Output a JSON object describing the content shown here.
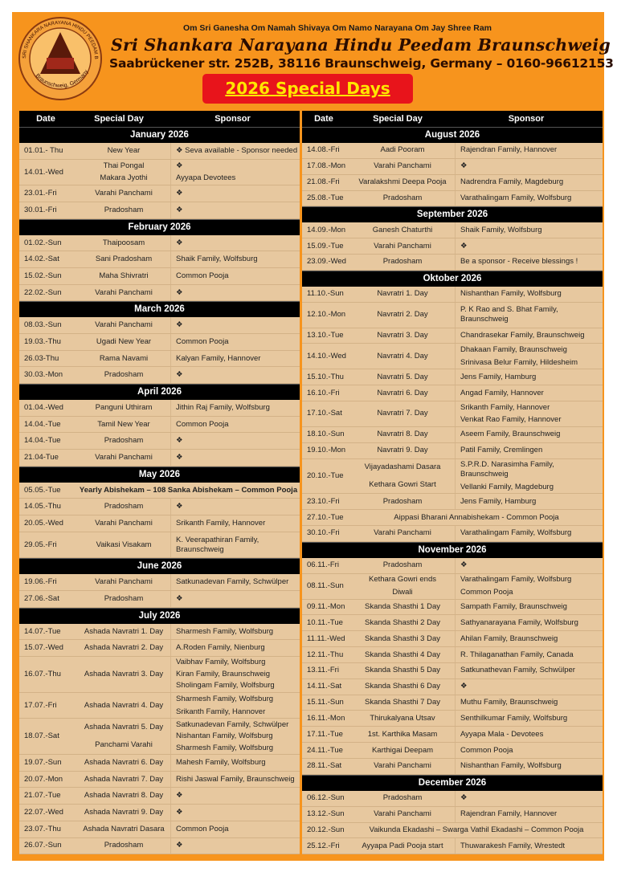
{
  "colors": {
    "panel": "#f7941d",
    "header_bg": "#000000",
    "cell_bg": "#e7c89f",
    "title_box": "#e8141b",
    "title_text": "#ffe600"
  },
  "logo": {
    "ring_text": "SRI SHANKARA NARAYANA HINDU PEEDAM BS/BG",
    "bottom_text": "Braunschweig, Germany"
  },
  "header": {
    "mantras": "Om Sri Ganesha  Om Namah Shivaya  Om Namo Narayana   Om Jay Shree Ram",
    "title": "Sri Shankara Narayana Hindu Peedam Braunschweig",
    "address": "Saabrückener str. 252B, 38116 Braunschweig, Germany – 0160-96612153",
    "special": "2026 Special Days"
  },
  "columns": {
    "date": "Date",
    "day": "Special Day",
    "sponsor": "Sponsor"
  },
  "left": [
    {
      "title": "January 2026",
      "rows": [
        {
          "date": "01.01.- Thu",
          "day": [
            "New Year"
          ],
          "sponsor": [
            "❖  Seva available - Sponsor needed"
          ]
        },
        {
          "date": "14.01.-Wed",
          "day": [
            "Thai Pongal",
            "Makara Jyothi"
          ],
          "sponsor": [
            "❖",
            "Ayyapa Devotees"
          ]
        },
        {
          "date": "23.01.-Fri",
          "day": [
            "Varahi Panchami"
          ],
          "sponsor": [
            "❖"
          ]
        },
        {
          "date": "30.01.-Fri",
          "day": [
            "Pradosham"
          ],
          "sponsor": [
            "❖"
          ]
        }
      ]
    },
    {
      "title": "February 2026",
      "rows": [
        {
          "date": "01.02.-Sun",
          "day": [
            "Thaipoosam"
          ],
          "sponsor": [
            "❖"
          ]
        },
        {
          "date": "14.02.-Sat",
          "day": [
            "Sani Pradosham"
          ],
          "sponsor": [
            "Shaik Family, Wolfsburg"
          ]
        },
        {
          "date": "15.02.-Sun",
          "day": [
            "Maha Shivratri"
          ],
          "sponsor": [
            "Common Pooja"
          ]
        },
        {
          "date": "22.02.-Sun",
          "day": [
            "Varahi Panchami"
          ],
          "sponsor": [
            "❖"
          ]
        }
      ]
    },
    {
      "title": "March 2026",
      "rows": [
        {
          "date": "08.03.-Sun",
          "day": [
            "Varahi Panchami"
          ],
          "sponsor": [
            "❖"
          ]
        },
        {
          "date": "19.03.-Thu",
          "day": [
            "Ugadi New Year"
          ],
          "sponsor": [
            "Common Pooja"
          ]
        },
        {
          "date": "26.03-Thu",
          "day": [
            "Rama Navami"
          ],
          "sponsor": [
            "Kalyan Family, Hannover"
          ]
        },
        {
          "date": "30.03.-Mon",
          "day": [
            "Pradosham"
          ],
          "sponsor": [
            "❖"
          ]
        }
      ]
    },
    {
      "title": "April 2026",
      "rows": [
        {
          "date": "01.04.-Wed",
          "day": [
            "Panguni Uthiram"
          ],
          "sponsor": [
            "Jithin Raj Family, Wolfsburg"
          ]
        },
        {
          "date": "14.04.-Tue",
          "day": [
            "Tamil New Year"
          ],
          "sponsor": [
            "Common Pooja"
          ]
        },
        {
          "date": "14.04.-Tue",
          "day": [
            "Pradosham"
          ],
          "sponsor": [
            "❖"
          ]
        },
        {
          "date": "21.04-Tue",
          "day": [
            "Varahi Panchami"
          ],
          "sponsor": [
            "❖"
          ]
        }
      ]
    },
    {
      "title": "May 2026",
      "rows": [
        {
          "date": "05.05.-Tue",
          "merged": "Yearly Abishekam – 108 Sanka Abishekam – Common Pooja",
          "bold": true
        },
        {
          "date": "14.05.-Thu",
          "day": [
            "Pradosham"
          ],
          "sponsor": [
            "❖"
          ]
        },
        {
          "date": "20.05.-Wed",
          "day": [
            "Varahi Panchami"
          ],
          "sponsor": [
            "Srikanth Family, Hannover"
          ]
        },
        {
          "date": "29.05.-Fri",
          "day": [
            "Vaikasi Visakam"
          ],
          "sponsor": [
            "K. Veerapathiran Family, Braunschweig"
          ]
        }
      ]
    },
    {
      "title": "June 2026",
      "rows": [
        {
          "date": "19.06.-Fri",
          "day": [
            "Varahi Panchami"
          ],
          "sponsor": [
            "Satkunadevan Family, Schwülper"
          ]
        },
        {
          "date": "27.06.-Sat",
          "day": [
            "Pradosham"
          ],
          "sponsor": [
            "❖"
          ]
        }
      ]
    },
    {
      "title": "July 2026",
      "rows": [
        {
          "date": "14.07.-Tue",
          "day": [
            "Ashada Navratri 1. Day"
          ],
          "sponsor": [
            "Sharmesh Family, Wolfsburg"
          ]
        },
        {
          "date": "15.07.-Wed",
          "day": [
            "Ashada Navratri 2. Day"
          ],
          "sponsor": [
            "A.Roden Family, Nienburg"
          ]
        },
        {
          "date": "16.07.-Thu",
          "day": [
            "Ashada Navratri 3. Day"
          ],
          "sponsor": [
            "Vaibhav Family, Wolfsburg",
            "Kiran Family, Braunschweig",
            "Sholingam Family, Wolfsburg"
          ]
        },
        {
          "date": "17.07.-Fri",
          "day": [
            "Ashada Navratri 4. Day"
          ],
          "sponsor": [
            "Sharmesh Family, Wolfsburg",
            "Srikanth Family, Hannover"
          ]
        },
        {
          "date": "18.07.-Sat",
          "day": [
            "Ashada Navratri 5. Day",
            "Panchami Varahi"
          ],
          "sponsor": [
            "Satkunadevan Family, Schwülper",
            "Nishantan Family, Wolfsburg",
            "Sharmesh Family, Wolfsburg"
          ]
        },
        {
          "date": "19.07.-Sun",
          "day": [
            "Ashada Navratri 6. Day"
          ],
          "sponsor": [
            "Mahesh Family, Wolfsburg"
          ]
        },
        {
          "date": "20.07.-Mon",
          "day": [
            "Ashada Navratri 7. Day"
          ],
          "sponsor": [
            "Rishi Jaswal Family, Braunschweig"
          ]
        },
        {
          "date": "21.07.-Tue",
          "day": [
            "Ashada Navratri 8. Day"
          ],
          "sponsor": [
            "❖"
          ]
        },
        {
          "date": "22.07.-Wed",
          "day": [
            "Ashada Navratri 9. Day"
          ],
          "sponsor": [
            "❖"
          ]
        },
        {
          "date": "23.07.-Thu",
          "day": [
            "Ashada Navratri Dasara"
          ],
          "sponsor": [
            "Common Pooja"
          ]
        },
        {
          "date": "26.07.-Sun",
          "day": [
            "Pradosham"
          ],
          "sponsor": [
            "❖"
          ]
        }
      ]
    }
  ],
  "right": [
    {
      "title": "August 2026",
      "rows": [
        {
          "date": "14.08.-Fri",
          "day": [
            "Aadi Pooram"
          ],
          "sponsor": [
            "Rajendran Family, Hannover"
          ]
        },
        {
          "date": "17.08.-Mon",
          "day": [
            "Varahi Panchami"
          ],
          "sponsor": [
            "❖"
          ]
        },
        {
          "date": "21.08.-Fri",
          "day": [
            "Varalakshmi Deepa Pooja"
          ],
          "sponsor": [
            "Nadrendra Family, Magdeburg"
          ]
        },
        {
          "date": "25.08.-Tue",
          "day": [
            "Pradosham"
          ],
          "sponsor": [
            "Varathalingam Family, Wolfsburg"
          ]
        }
      ]
    },
    {
      "title": "September 2026",
      "rows": [
        {
          "date": "14.09.-Mon",
          "day": [
            "Ganesh Chaturthi"
          ],
          "sponsor": [
            "Shaik Family, Wolfsburg"
          ]
        },
        {
          "date": "15.09.-Tue",
          "day": [
            "Varahi Panchami"
          ],
          "sponsor": [
            "❖"
          ]
        },
        {
          "date": "23.09.-Wed",
          "day": [
            "Pradosham"
          ],
          "sponsor": [
            "Be a sponsor -  Receive blessings !"
          ]
        }
      ]
    },
    {
      "title": "Oktober 2026",
      "rows": [
        {
          "date": "11.10.-Sun",
          "day": [
            "Navratri 1. Day"
          ],
          "sponsor": [
            "Nishanthan Family, Wolfsburg"
          ]
        },
        {
          "date": "12.10.-Mon",
          "day": [
            "Navratri 2. Day"
          ],
          "sponsor": [
            "P. K Rao and S. Bhat Family, Braunschweig"
          ]
        },
        {
          "date": "13.10.-Tue",
          "day": [
            "Navratri 3. Day"
          ],
          "sponsor": [
            "Chandrasekar Family, Braunschweig"
          ]
        },
        {
          "date": "14.10.-Wed",
          "day": [
            "Navratri 4. Day"
          ],
          "sponsor": [
            "Dhakaan Family, Braunschweig",
            "Srinivasa Belur Family, Hildesheim"
          ]
        },
        {
          "date": "15.10.-Thu",
          "day": [
            "Navratri 5. Day"
          ],
          "sponsor": [
            "Jens Family, Hamburg"
          ]
        },
        {
          "date": "16.10.-Fri",
          "day": [
            "Navratri 6. Day"
          ],
          "sponsor": [
            "Angad Family, Hannover"
          ]
        },
        {
          "date": "17.10.-Sat",
          "day": [
            "Navratri 7. Day"
          ],
          "sponsor": [
            "Srikanth Family, Hannover",
            "Venkat Rao Family, Hannover"
          ]
        },
        {
          "date": "18.10.-Sun",
          "day": [
            "Navratri 8. Day"
          ],
          "sponsor": [
            "Aseem Family, Braunschweig"
          ]
        },
        {
          "date": "19.10.-Mon",
          "day": [
            "Navratri 9. Day"
          ],
          "sponsor": [
            "Patil Family, Cremlingen"
          ]
        },
        {
          "date": "20.10.-Tue",
          "day": [
            "Vijayadashami Dasara",
            "Kethara Gowri Start"
          ],
          "sponsor": [
            "S.P.R.D. Narasimha Family, Braunschweig",
            "Vellanki Family, Magdeburg"
          ]
        },
        {
          "date": "23.10.-Fri",
          "day": [
            "Pradosham"
          ],
          "sponsor": [
            "Jens Family, Hamburg"
          ]
        },
        {
          "date": "27.10.-Tue",
          "merged": "Aippasi Bharani Annabishekam -  Common Pooja"
        },
        {
          "date": "30.10.-Fri",
          "day": [
            "Varahi Panchami"
          ],
          "sponsor": [
            "Varathalingam Family, Wolfsburg"
          ]
        }
      ]
    },
    {
      "title": "November 2026",
      "rows": [
        {
          "date": "06.11.-Fri",
          "day": [
            "Pradosham"
          ],
          "sponsor": [
            "❖"
          ]
        },
        {
          "date": "08.11.-Sun",
          "day": [
            "Kethara Gowri ends",
            "Diwali"
          ],
          "sponsor": [
            "Varathalingam Family, Wolfsburg",
            "Common Pooja"
          ]
        },
        {
          "date": "09.11.-Mon",
          "day": [
            "Skanda Shasthi 1 Day"
          ],
          "sponsor": [
            "Sampath Family, Braunschweig"
          ]
        },
        {
          "date": "10.11.-Tue",
          "day": [
            "Skanda Shasthi 2 Day"
          ],
          "sponsor": [
            "Sathyanarayana Family, Wolfsburg"
          ]
        },
        {
          "date": "11.11.-Wed",
          "day": [
            "Skanda Shasthi 3 Day"
          ],
          "sponsor": [
            "Ahilan Family, Braunschweig"
          ]
        },
        {
          "date": "12.11.-Thu",
          "day": [
            "Skanda Shasthi 4 Day"
          ],
          "sponsor": [
            "R. Thilaganathan Family, Canada"
          ]
        },
        {
          "date": "13.11.-Fri",
          "day": [
            "Skanda Shasthi 5 Day"
          ],
          "sponsor": [
            "Satkunathevan Family, Schwülper"
          ]
        },
        {
          "date": "14.11.-Sat",
          "day": [
            "Skanda Shasthi 6 Day"
          ],
          "sponsor": [
            "❖"
          ]
        },
        {
          "date": "15.11.-Sun",
          "day": [
            "Skanda Shasthi 7 Day"
          ],
          "sponsor": [
            "Muthu Family, Braunschweig"
          ]
        },
        {
          "date": "16.11.-Mon",
          "day": [
            "Thirukalyana Utsav"
          ],
          "sponsor": [
            "Senthilkumar Family, Wolfsburg"
          ]
        },
        {
          "date": "17.11.-Tue",
          "day": [
            "1st. Karthika Masam"
          ],
          "sponsor": [
            "Ayyapa Mala - Devotees"
          ]
        },
        {
          "date": "24.11.-Tue",
          "day": [
            "Karthigai Deepam"
          ],
          "sponsor": [
            "Common Pooja"
          ]
        },
        {
          "date": "28.11.-Sat",
          "day": [
            "Varahi Panchami"
          ],
          "sponsor": [
            "Nishanthan Family, Wolfsburg"
          ]
        }
      ]
    },
    {
      "title": "December 2026",
      "rows": [
        {
          "date": "06.12.-Sun",
          "day": [
            "Pradosham"
          ],
          "sponsor": [
            "❖"
          ]
        },
        {
          "date": "13.12.-Sun",
          "day": [
            "Varahi Panchami"
          ],
          "sponsor": [
            "Rajendran Family, Hannover"
          ]
        },
        {
          "date": "20.12.-Sun",
          "merged": "Vaikunda Ekadashi – Swarga Vathil Ekadashi – Common Pooja"
        },
        {
          "date": "25.12.-Fri",
          "day": [
            "Ayyapa Padi Pooja start"
          ],
          "sponsor": [
            "Thuwarakesh Family, Wrestedt"
          ]
        }
      ]
    }
  ]
}
